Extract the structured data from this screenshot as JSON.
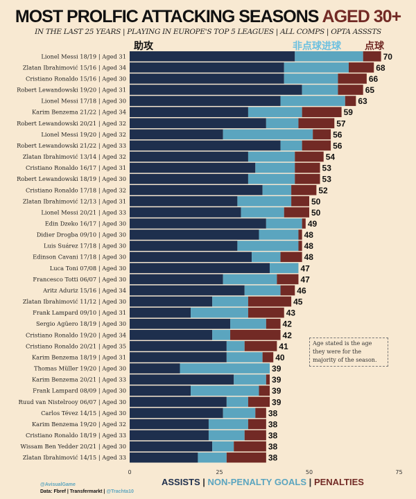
{
  "colors": {
    "assists": "#1e2f4d",
    "npg": "#5ba5bf",
    "penalties": "#722a25",
    "background": "#f8e9d2"
  },
  "chart_data": {
    "type": "bar",
    "orientation": "horizontal",
    "stacked": true,
    "title": "MOST PROLFIC ATTACKING SEASONS",
    "title_accent": "AGED 30+",
    "subtitle": "IN THE LAST 25 YEARS | PLAYING IN EUROPE'S TOP 5 LEAGUES | ALL COMPS | OPTA ASSSTS",
    "xlim": [
      0,
      75
    ],
    "xticks": [
      "0",
      "25",
      "50",
      "75"
    ],
    "grid": false,
    "series_labels_cn": [
      "助攻",
      "非点球进球",
      "点球"
    ],
    "legend": [
      {
        "name": "ASSISTS"
      },
      {
        "name": "NON-PENALTY GOALS"
      },
      {
        "name": "PENALTIES"
      }
    ],
    "categories": [
      "Lionel Messi 18/19 | Aged 31",
      "Zlatan Ibrahimović 15/16 | Aged 34",
      "Cristiano Ronaldo 15/16 | Aged 30",
      "Robert Lewandowski 19/20 | Aged 31",
      "Lionel Messi 17/18 | Aged 30",
      "Karim Benzema 21/22 | Aged 34",
      "Robert Lewandowski 20/21 | Aged 32",
      "Lionel Messi 19/20 | Aged 32",
      "Robert Lewandowski 21/22 | Aged 33",
      "Zlatan Ibrahimović 13/14 | Aged 32",
      "Cristiano Ronaldo 16/17 | Aged 31",
      "Robert Lewandowski 18/19 | Aged 30",
      "Cristiano Ronaldo 17/18 | Aged 32",
      "Zlatan Ibrahimović 12/13 | Aged 31",
      "Lionel Messi 20/21 | Aged 33",
      "Edin Dzeko 16/17 | Aged 30",
      "Didier Drogba 09/10 | Aged 30",
      "Luis Suárez 17/18 | Aged 30",
      "Edinson Cavani 17/18 | Aged 30",
      "Luca Toni 07/08 | Aged 30",
      "Francesco Totti 06/07 | Aged 30",
      "Aritz Aduriz 15/16 | Aged 34",
      "Zlatan Ibrahimović 11/12 | Aged 30",
      "Frank Lampard 09/10 | Aged 31",
      "Sergio Agüero 18/19 | Aged 30",
      "Cristiano Ronaldo 19/20 | Aged 34",
      "Cristiano Ronaldo 20/21 | Aged 35",
      "Karim Benzema 18/19 | Aged 31",
      "Thomas Müller 19/20 | Aged 30",
      "Karim Benzema 20/21 | Aged 33",
      "Frank Lampard 08/09 | Aged 30",
      "Ruud van Nistelrooy 06/07 | Aged 30",
      "Carlos Tévez 14/15 | Aged 30",
      "Karim Benzema 19/20 | Aged 32",
      "Cristiano Ronaldo 18/19 | Aged 33",
      "Wissam Ben Yedder 20/21 | Aged 30",
      "Zlatan Ibrahimović 14/15 | Aged 33"
    ],
    "series": [
      {
        "name": "ASSISTS",
        "values": [
          46,
          43,
          43,
          48,
          42,
          33,
          38,
          26,
          42,
          33,
          35,
          33,
          37,
          30,
          31,
          38,
          36,
          30,
          34,
          39,
          26,
          32,
          23,
          17,
          28,
          23,
          27,
          27,
          14,
          29,
          17,
          27,
          26,
          22,
          22,
          23,
          19
        ]
      },
      {
        "name": "NON-PENALTY GOALS",
        "values": [
          19,
          18,
          15,
          10,
          18,
          15,
          9,
          25,
          6,
          13,
          11,
          13,
          8,
          15,
          12,
          10,
          11,
          17,
          8,
          8,
          15,
          10,
          10,
          16,
          10,
          5,
          5,
          10,
          25,
          9,
          19,
          6,
          9,
          11,
          10,
          6,
          8
        ]
      },
      {
        "name": "PENALTIES",
        "values": [
          5,
          7,
          8,
          7,
          3,
          11,
          10,
          5,
          8,
          8,
          7,
          7,
          7,
          5,
          7,
          1,
          1,
          1,
          6,
          0,
          6,
          4,
          12,
          10,
          4,
          14,
          9,
          3,
          0,
          1,
          3,
          6,
          3,
          5,
          6,
          9,
          11
        ]
      }
    ],
    "totals": [
      "70",
      "68",
      "66",
      "65",
      "63",
      "59",
      "57",
      "56",
      "56",
      "54",
      "53",
      "53",
      "52",
      "50",
      "50",
      "49",
      "48",
      "48",
      "48",
      "47",
      "47",
      "46",
      "45",
      "43",
      "42",
      "42",
      "41",
      "40",
      "39",
      "39",
      "39",
      "39",
      "38",
      "38",
      "38",
      "38",
      "38"
    ],
    "annotation": "Age stated is the age they were for the majority of the season."
  },
  "credits": {
    "handle": "@AvisualGame",
    "data_prefix": "Data: Fbref | Transfermarkt | ",
    "data_handle": "@Trachta10"
  },
  "legend_sep": "|"
}
